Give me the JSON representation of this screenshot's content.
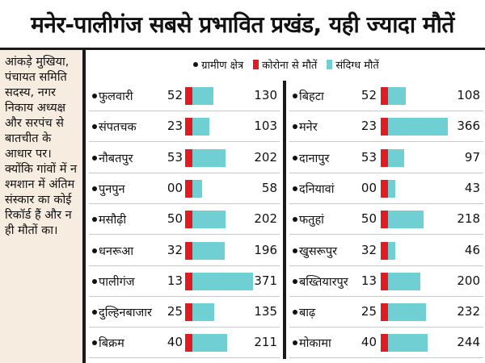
{
  "title": "मनेर-पालीगंज सबसे प्रभावित प्रखंड, यही ज्यादा मौतें",
  "sidenote": "आंकड़े मुखिया, पंचायत समिति सदस्य, नगर निकाय अध्यक्ष और सरपंच से बातचीत के आधार पर। क्योंकि गांवों में न श्मशान में अंतिम संस्कार का कोई रिकॉर्ड हैं और न ही मौतों का।",
  "legend": {
    "rural": "ग्रामीण क्षेत्र",
    "corona": "कोरोना से मौतें",
    "suspected": "संदिग्ध मौतें"
  },
  "colors": {
    "corona": "#e11b22",
    "suspected": "#6fcfd3"
  },
  "chart_data": {
    "type": "bar",
    "series": [
      {
        "name": "कोरोना से मौतें",
        "key": "corona"
      },
      {
        "name": "संदिग्ध मौतें",
        "key": "suspected"
      }
    ],
    "left": [
      {
        "name": "फुलवारी",
        "corona": "52",
        "suspected": "130"
      },
      {
        "name": "संपतचक",
        "corona": "23",
        "suspected": "103"
      },
      {
        "name": "नौबतपुर",
        "corona": "53",
        "suspected": "202"
      },
      {
        "name": "पुनपुन",
        "corona": "00",
        "suspected": "58"
      },
      {
        "name": "मसौढ़ी",
        "corona": "50",
        "suspected": "202"
      },
      {
        "name": "धनरूआ",
        "corona": "32",
        "suspected": "196"
      },
      {
        "name": "पालीगंज",
        "corona": "13",
        "suspected": "371"
      },
      {
        "name": "दुल्हिनबाजार",
        "corona": "25",
        "suspected": "135"
      },
      {
        "name": "बिक्रम",
        "corona": "40",
        "suspected": "211"
      }
    ],
    "right": [
      {
        "name": "बिहटा",
        "corona": "52",
        "suspected": "108"
      },
      {
        "name": "मनेर",
        "corona": "23",
        "suspected": "366"
      },
      {
        "name": "दानापुर",
        "corona": "53",
        "suspected": "97"
      },
      {
        "name": "दनियावां",
        "corona": "00",
        "suspected": "43"
      },
      {
        "name": "फतुहां",
        "corona": "50",
        "suspected": "218"
      },
      {
        "name": "खुसरूपुर",
        "corona": "32",
        "suspected": "46"
      },
      {
        "name": "बख्तियारपुर",
        "corona": "13",
        "suspected": "200"
      },
      {
        "name": "बाढ़",
        "corona": "25",
        "suspected": "232"
      },
      {
        "name": "मोकामा",
        "corona": "40",
        "suspected": "244"
      }
    ]
  }
}
